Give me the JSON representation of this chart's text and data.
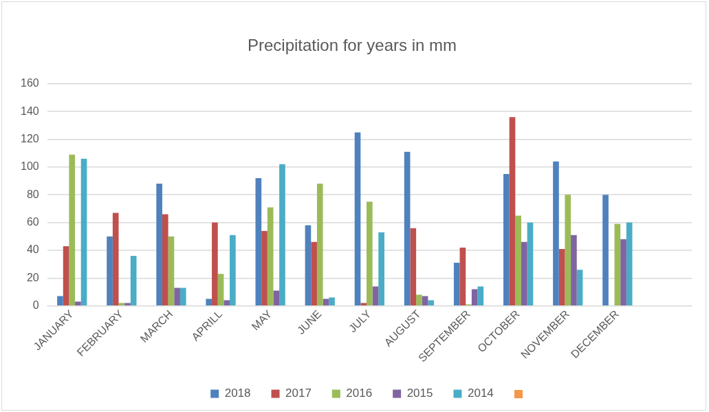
{
  "chart_data": {
    "type": "bar",
    "title": "Precipitation for years in mm",
    "categories": [
      "JANUARY",
      "FEBRUARY",
      "MARCH",
      "APRILL",
      "MAY",
      "JUNE",
      "JULY",
      "AUGUST",
      "SEPTEMBER",
      "OCTOBER",
      "NOVEMBER",
      "DECEMBER",
      null
    ],
    "series": [
      {
        "name": "2018",
        "color": "#4f81bd",
        "values": [
          7,
          50,
          88,
          5,
          92,
          58,
          125,
          111,
          31,
          95,
          104,
          80,
          null
        ]
      },
      {
        "name": "2017",
        "color": "#c0504d",
        "values": [
          43,
          67,
          66,
          60,
          54,
          46,
          2,
          56,
          42,
          136,
          41,
          null,
          null
        ]
      },
      {
        "name": "2016",
        "color": "#9bbb59",
        "values": [
          109,
          2,
          50,
          23,
          71,
          88,
          75,
          8,
          1,
          65,
          80,
          59,
          null
        ]
      },
      {
        "name": "2015",
        "color": "#8064a2",
        "values": [
          3,
          2,
          13,
          4,
          11,
          5,
          14,
          7,
          12,
          46,
          51,
          48,
          null
        ]
      },
      {
        "name": "2014",
        "color": "#4bacc6",
        "values": [
          106,
          36,
          13,
          51,
          102,
          6,
          53,
          4,
          14,
          60,
          26,
          60,
          null
        ]
      }
    ],
    "ylim": [
      0,
      160
    ],
    "yticks": [
      0,
      20,
      40,
      60,
      80,
      100,
      120,
      140,
      160
    ],
    "grid": "y",
    "legend": "bottom"
  }
}
